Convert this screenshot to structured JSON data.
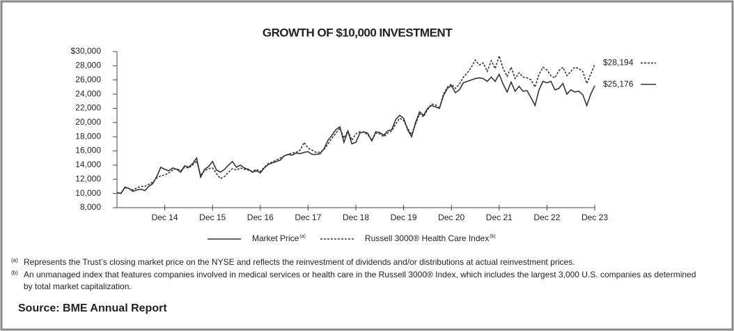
{
  "chart_data": {
    "type": "line",
    "title": "GROWTH OF $10,000 INVESTMENT",
    "categories": [
      null,
      null,
      null,
      null,
      null,
      null,
      null,
      null,
      null,
      null,
      null,
      null,
      "Dec 14",
      null,
      null,
      null,
      null,
      null,
      null,
      null,
      null,
      null,
      null,
      null,
      "Dec 15",
      null,
      null,
      null,
      null,
      null,
      null,
      null,
      null,
      null,
      null,
      null,
      "Dec 16",
      null,
      null,
      null,
      null,
      null,
      null,
      null,
      null,
      null,
      null,
      null,
      "Dec 17",
      null,
      null,
      null,
      null,
      null,
      null,
      null,
      null,
      null,
      null,
      null,
      "Dec 18",
      null,
      null,
      null,
      null,
      null,
      null,
      null,
      null,
      null,
      null,
      null,
      "Dec 19",
      null,
      null,
      null,
      null,
      null,
      null,
      null,
      null,
      null,
      null,
      null,
      "Dec 20",
      null,
      null,
      null,
      null,
      null,
      null,
      null,
      null,
      null,
      null,
      null,
      "Dec 21",
      null,
      null,
      null,
      null,
      null,
      null,
      null,
      null,
      null,
      null,
      null,
      "Dec 22",
      null,
      null,
      null,
      null,
      null,
      null,
      null,
      null,
      null,
      null,
      null,
      "Dec 23"
    ],
    "series": [
      {
        "name": "Market Price",
        "name_note": "(a)",
        "color": "#333333",
        "dash": false,
        "values": [
          10100,
          10000,
          10900,
          10700,
          10300,
          10500,
          10600,
          10400,
          11000,
          11400,
          12400,
          13700,
          13400,
          13200,
          13600,
          13400,
          13000,
          13900,
          13700,
          14200,
          15000,
          12300,
          13400,
          13800,
          14500,
          13300,
          13000,
          13400,
          14000,
          14500,
          13700,
          14000,
          13600,
          13400,
          13000,
          13200,
          12900,
          13600,
          14100,
          14300,
          14500,
          14700,
          15300,
          15500,
          15400,
          15700,
          15600,
          15800,
          15900,
          15500,
          15500,
          15600,
          16300,
          17500,
          18200,
          19000,
          19400,
          17200,
          18800,
          17000,
          17200,
          18500,
          18700,
          18500,
          17400,
          18700,
          18600,
          18200,
          18800,
          19000,
          20400,
          21000,
          20600,
          19000,
          18000,
          20000,
          21500,
          21000,
          22000,
          22400,
          22200,
          22000,
          23800,
          24800,
          25200,
          24200,
          24600,
          25600,
          25800,
          26000,
          26200,
          26300,
          26200,
          25800,
          26400,
          25800,
          26800,
          25400,
          24300,
          25700,
          24400,
          25100,
          24400,
          24500,
          23500,
          22400,
          24600,
          25800,
          25600,
          25800,
          24600,
          24800,
          25500,
          24000,
          24600,
          24300,
          24400,
          23900,
          22400,
          24000,
          25176
        ],
        "value_labels": [
          null,
          null,
          null,
          null,
          null,
          null,
          null,
          null,
          null,
          null,
          null,
          null,
          null,
          null,
          null,
          null,
          null,
          null,
          null,
          null,
          null,
          null,
          null,
          null,
          null,
          null,
          null,
          null,
          null,
          null,
          null,
          null,
          null,
          null,
          null,
          null,
          null,
          null,
          null,
          null,
          null,
          null,
          null,
          null,
          null,
          null,
          null,
          null,
          null,
          null,
          null,
          null,
          null,
          null,
          null,
          null,
          null,
          null,
          null,
          null,
          null,
          null,
          null,
          null,
          null,
          null,
          null,
          null,
          null,
          null,
          null,
          null,
          null,
          null,
          null,
          null,
          null,
          null,
          null,
          null,
          null,
          null,
          null,
          null,
          null,
          null,
          null,
          null,
          null,
          null,
          null,
          null,
          null,
          null,
          null,
          null,
          null,
          null,
          null,
          null,
          null,
          null,
          null,
          null,
          null,
          null,
          null,
          null,
          null,
          null,
          null,
          null,
          null,
          null,
          null,
          null,
          null,
          null,
          null,
          null,
          "$25,176"
        ]
      },
      {
        "name": "Russell 3000® Health Care Index",
        "name_note": "(b)",
        "color": "#333333",
        "dash": true,
        "values": [
          10100,
          10050,
          10800,
          10700,
          10500,
          10800,
          11000,
          11000,
          11300,
          11600,
          12200,
          12500,
          12600,
          12900,
          13300,
          13500,
          13200,
          13700,
          13600,
          14000,
          14600,
          12600,
          13200,
          13500,
          13600,
          12800,
          12100,
          12400,
          13000,
          13500,
          13300,
          13600,
          13400,
          13300,
          13100,
          13400,
          13100,
          13700,
          14200,
          14400,
          14700,
          15000,
          15300,
          15500,
          15700,
          15800,
          16100,
          17200,
          16400,
          16100,
          15800,
          15800,
          16200,
          17000,
          17800,
          18500,
          19200,
          17800,
          18800,
          17500,
          18400,
          18700,
          18600,
          18300,
          17500,
          18500,
          18400,
          18000,
          18500,
          18800,
          19800,
          20600,
          20300,
          19200,
          18300,
          19800,
          21200,
          20800,
          21800,
          22600,
          22500,
          22000,
          24000,
          25000,
          25400,
          24800,
          25400,
          26400,
          27000,
          27800,
          28800,
          28100,
          28400,
          27200,
          28700,
          27600,
          29400,
          27600,
          26500,
          27800,
          26200,
          27000,
          26400,
          26300,
          26000,
          25000,
          26800,
          27800,
          27400,
          26600,
          26300,
          27300,
          27800,
          26600,
          27200,
          27800,
          27600,
          27200,
          25500,
          26800,
          28194
        ],
        "value_labels": [
          null,
          null,
          null,
          null,
          null,
          null,
          null,
          null,
          null,
          null,
          null,
          null,
          null,
          null,
          null,
          null,
          null,
          null,
          null,
          null,
          null,
          null,
          null,
          null,
          null,
          null,
          null,
          null,
          null,
          null,
          null,
          null,
          null,
          null,
          null,
          null,
          null,
          null,
          null,
          null,
          null,
          null,
          null,
          null,
          null,
          null,
          null,
          null,
          null,
          null,
          null,
          null,
          null,
          null,
          null,
          null,
          null,
          null,
          null,
          null,
          null,
          null,
          null,
          null,
          null,
          null,
          null,
          null,
          null,
          null,
          null,
          null,
          null,
          null,
          null,
          null,
          null,
          null,
          null,
          null,
          null,
          null,
          null,
          null,
          null,
          null,
          null,
          null,
          null,
          null,
          null,
          null,
          null,
          null,
          null,
          null,
          null,
          null,
          null,
          null,
          null,
          null,
          null,
          null,
          null,
          null,
          null,
          null,
          null,
          null,
          null,
          null,
          null,
          null,
          null,
          null,
          null,
          null,
          null,
          null,
          "$28,194"
        ]
      }
    ],
    "ylim": [
      8000,
      30000
    ],
    "yticks": [
      {
        "value": 8000,
        "label": "8,000"
      },
      {
        "value": 10000,
        "label": "10,000"
      },
      {
        "value": 12000,
        "label": "12,000"
      },
      {
        "value": 14000,
        "label": "14,000"
      },
      {
        "value": 16000,
        "label": "16,000"
      },
      {
        "value": 18000,
        "label": "18,000"
      },
      {
        "value": 20000,
        "label": "20,000"
      },
      {
        "value": 22000,
        "label": "22,000"
      },
      {
        "value": 24000,
        "label": "24,000"
      },
      {
        "value": 26000,
        "label": "26,000"
      },
      {
        "value": 28000,
        "label": "28,000"
      },
      {
        "value": 30000,
        "label": "$30,000"
      }
    ],
    "grid": false,
    "legend": "bottom",
    "footnotes": [
      {
        "mark": "(a)",
        "text": "Represents the Trust’s closing market price on the NYSE and reflects the reinvestment of dividends and/or distributions at actual reinvestment prices."
      },
      {
        "mark": "(b)",
        "lines": [
          "An unmanaged index that features companies involved in medical services or health care in the Russell 3000® Index, which includes the largest 3,000 U.S. companies as determined",
          "by total market capitalization."
        ]
      }
    ],
    "source": "Source: BME Annual Report"
  }
}
